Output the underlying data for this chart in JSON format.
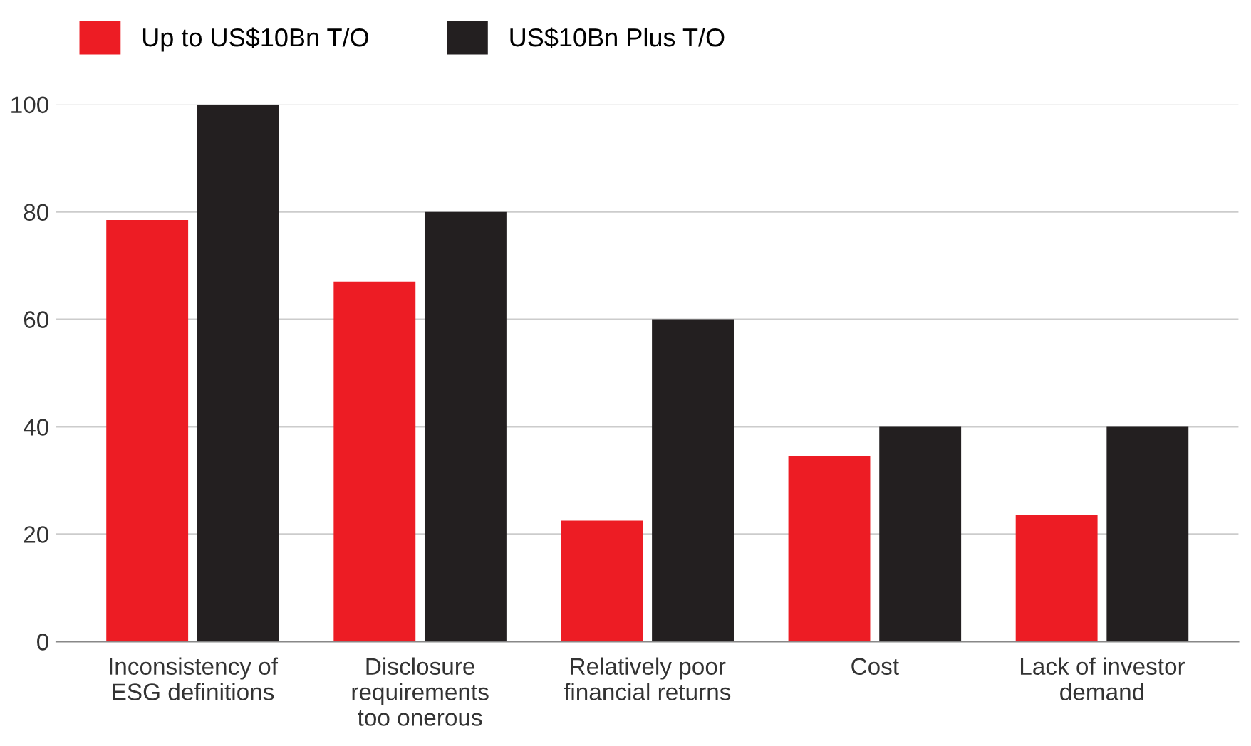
{
  "chart_data": {
    "type": "bar",
    "categories": [
      "Inconsistency of\nESG definitions",
      "Disclosure\nrequirements\ntoo onerous",
      "Relatively poor\nfinancial returns",
      "Cost",
      "Lack of investor\ndemand"
    ],
    "series": [
      {
        "name": "Up to US$10Bn T/O",
        "color": "#ed1c24",
        "values": [
          78.5,
          67,
          22.5,
          34.5,
          23.5
        ]
      },
      {
        "name": "US$10Bn Plus T/O",
        "color": "#231f20",
        "values": [
          100,
          80,
          60,
          40,
          40
        ]
      }
    ],
    "ylim": [
      0,
      100
    ],
    "yticks": [
      0,
      20,
      40,
      60,
      80,
      100
    ],
    "grid": "y",
    "legend": "top left"
  }
}
